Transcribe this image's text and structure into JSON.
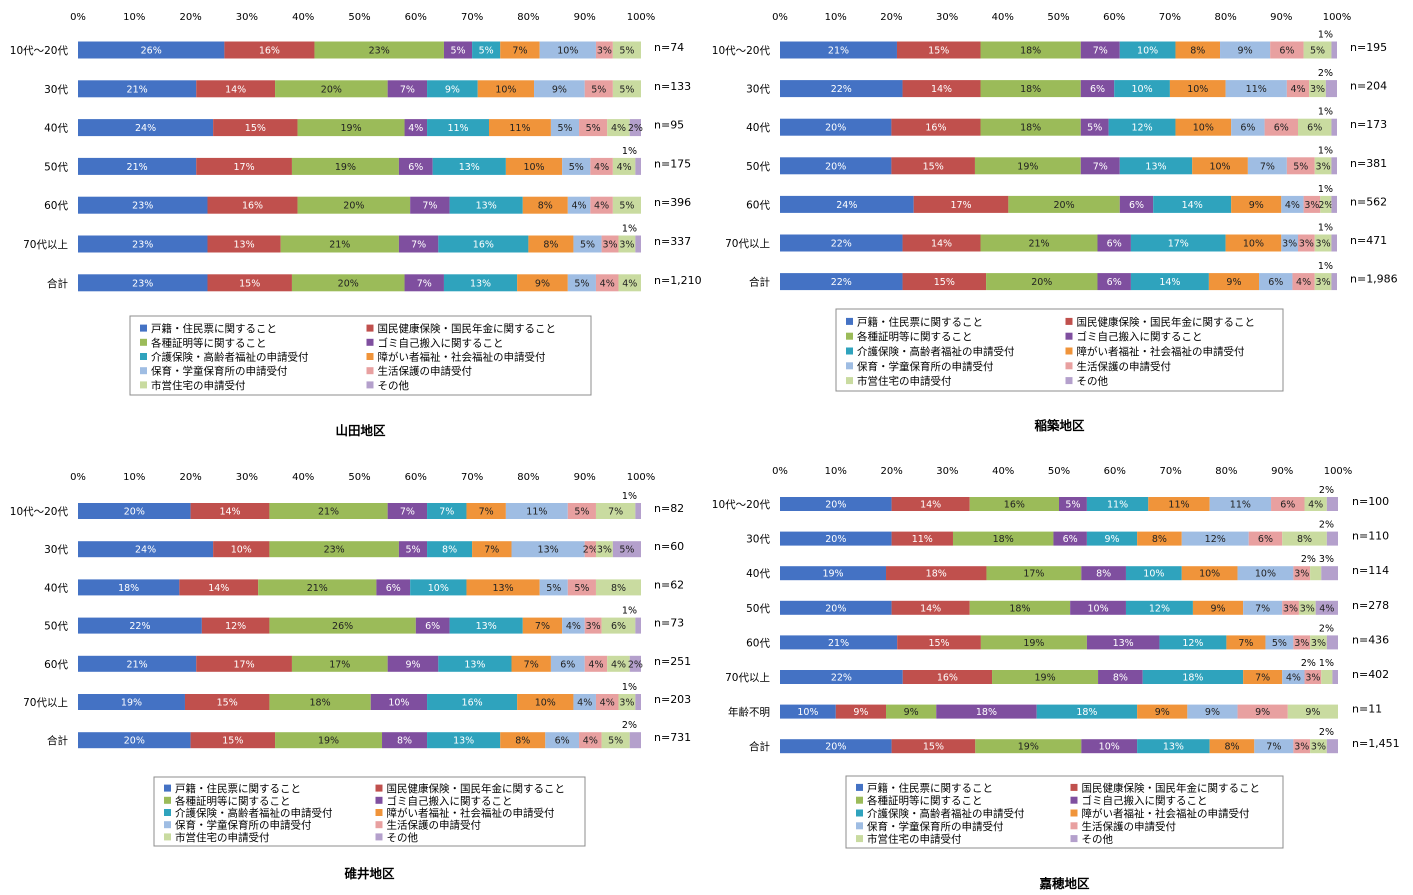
{
  "legend_labels": [
    "戸籍・住民票に関すること",
    "国民健康保険・国民年金に関すること",
    "各種証明等に関すること",
    "ゴミ自己搬入に関すること",
    "介護保険・高齢者福祉の申請受付",
    "障がい者福祉・社会福祉の申請受付",
    "保育・学童保育所の申請受付",
    "生活保護の申請受付",
    "市営住宅の申請受付",
    "その他"
  ],
  "colors": [
    "#4472c4",
    "#c0504d",
    "#9bbb59",
    "#7f4f9f",
    "#2fa3bd",
    "#f0943a",
    "#9fbde3",
    "#e8a0a0",
    "#c9dba0",
    "#b4a0cc"
  ],
  "chart_data": [
    {
      "type": "bar",
      "stacked": true,
      "orientation": "horizontal",
      "percent": true,
      "title": "山田地区",
      "xlim": [
        0,
        100
      ],
      "x_ticks": [
        "0%",
        "10%",
        "20%",
        "30%",
        "40%",
        "50%",
        "60%",
        "70%",
        "80%",
        "90%",
        "100%"
      ],
      "categories": [
        "10代～20代",
        "30代",
        "40代",
        "50代",
        "60代",
        "70代以上",
        "合計"
      ],
      "n_labels": [
        "n=74",
        "n=133",
        "n=95",
        "n=175",
        "n=396",
        "n=337",
        "n=1,210"
      ],
      "rows": [
        {
          "values": [
            26,
            16,
            23,
            5,
            5,
            7,
            10,
            3,
            5,
            0
          ],
          "labels": [
            "26%",
            "16%",
            "23%",
            "5%",
            "5%",
            "7%",
            "10%",
            "3%",
            "5%",
            ""
          ],
          "above": ""
        },
        {
          "values": [
            21,
            14,
            20,
            7,
            9,
            10,
            9,
            5,
            5,
            0
          ],
          "labels": [
            "21%",
            "14%",
            "20%",
            "7%",
            "9%",
            "10%",
            "9%",
            "5%",
            "5%",
            ""
          ],
          "above": ""
        },
        {
          "values": [
            24,
            15,
            19,
            4,
            11,
            11,
            5,
            5,
            4,
            2
          ],
          "labels": [
            "24%",
            "15%",
            "19%",
            "4%",
            "11%",
            "11%",
            "5%",
            "5%",
            "4%",
            "2%"
          ],
          "above": ""
        },
        {
          "values": [
            21,
            17,
            19,
            6,
            13,
            10,
            5,
            4,
            4,
            1
          ],
          "labels": [
            "21%",
            "17%",
            "19%",
            "6%",
            "13%",
            "10%",
            "5%",
            "4%",
            "4%",
            ""
          ],
          "above": "1%"
        },
        {
          "values": [
            23,
            16,
            20,
            7,
            13,
            8,
            4,
            4,
            5,
            0
          ],
          "labels": [
            "23%",
            "16%",
            "20%",
            "7%",
            "13%",
            "8%",
            "4%",
            "4%",
            "5%",
            ""
          ],
          "above": ""
        },
        {
          "values": [
            23,
            13,
            21,
            7,
            16,
            8,
            5,
            3,
            3,
            1
          ],
          "labels": [
            "23%",
            "13%",
            "21%",
            "7%",
            "16%",
            "8%",
            "5%",
            "3%",
            "3%",
            ""
          ],
          "above": "1%"
        },
        {
          "values": [
            23,
            15,
            20,
            7,
            13,
            9,
            5,
            4,
            4,
            0
          ],
          "labels": [
            "23%",
            "15%",
            "20%",
            "7%",
            "13%",
            "9%",
            "5%",
            "4%",
            "4%",
            ""
          ],
          "above": ""
        }
      ]
    },
    {
      "type": "bar",
      "stacked": true,
      "orientation": "horizontal",
      "percent": true,
      "title": "稲築地区",
      "xlim": [
        0,
        100
      ],
      "x_ticks": [
        "0%",
        "10%",
        "20%",
        "30%",
        "40%",
        "50%",
        "60%",
        "70%",
        "80%",
        "90%",
        "100%"
      ],
      "categories": [
        "10代～20代",
        "30代",
        "40代",
        "50代",
        "60代",
        "70代以上",
        "合計"
      ],
      "n_labels": [
        "n=195",
        "n=204",
        "n=173",
        "n=381",
        "n=562",
        "n=471",
        "n=1,986"
      ],
      "rows": [
        {
          "values": [
            21,
            15,
            18,
            7,
            10,
            8,
            9,
            6,
            5,
            1
          ],
          "labels": [
            "21%",
            "15%",
            "18%",
            "7%",
            "10%",
            "8%",
            "9%",
            "6%",
            "5%",
            ""
          ],
          "above": "1%"
        },
        {
          "values": [
            22,
            14,
            18,
            6,
            10,
            10,
            11,
            4,
            3,
            2
          ],
          "labels": [
            "22%",
            "14%",
            "18%",
            "6%",
            "10%",
            "10%",
            "11%",
            "4%",
            "3%",
            ""
          ],
          "above": "2%"
        },
        {
          "values": [
            20,
            16,
            18,
            5,
            12,
            10,
            6,
            6,
            6,
            1
          ],
          "labels": [
            "20%",
            "16%",
            "18%",
            "5%",
            "12%",
            "10%",
            "6%",
            "6%",
            "6%",
            ""
          ],
          "above": "1%"
        },
        {
          "values": [
            20,
            15,
            19,
            7,
            13,
            10,
            7,
            5,
            3,
            1
          ],
          "labels": [
            "20%",
            "15%",
            "19%",
            "7%",
            "13%",
            "10%",
            "7%",
            "5%",
            "3%",
            ""
          ],
          "above": "1%"
        },
        {
          "values": [
            24,
            17,
            20,
            6,
            14,
            9,
            4,
            3,
            2,
            1
          ],
          "labels": [
            "24%",
            "17%",
            "20%",
            "6%",
            "14%",
            "9%",
            "4%",
            "3%",
            "2%",
            ""
          ],
          "above": "1%"
        },
        {
          "values": [
            22,
            14,
            21,
            6,
            17,
            10,
            3,
            3,
            3,
            1
          ],
          "labels": [
            "22%",
            "14%",
            "21%",
            "6%",
            "17%",
            "10%",
            "3%",
            "3%",
            "3%",
            ""
          ],
          "above": "1%"
        },
        {
          "values": [
            22,
            15,
            20,
            6,
            14,
            9,
            6,
            4,
            3,
            1
          ],
          "labels": [
            "22%",
            "15%",
            "20%",
            "6%",
            "14%",
            "9%",
            "6%",
            "4%",
            "3%",
            ""
          ],
          "above": "1%"
        }
      ]
    },
    {
      "type": "bar",
      "stacked": true,
      "orientation": "horizontal",
      "percent": true,
      "title": "碓井地区",
      "xlim": [
        0,
        100
      ],
      "x_ticks": [
        "0%",
        "10%",
        "20%",
        "30%",
        "40%",
        "50%",
        "60%",
        "70%",
        "80%",
        "90%",
        "100%"
      ],
      "categories": [
        "10代～20代",
        "30代",
        "40代",
        "50代",
        "60代",
        "70代以上",
        "合計"
      ],
      "n_labels": [
        "n=82",
        "n=60",
        "n=62",
        "n=73",
        "n=251",
        "n=203",
        "n=731"
      ],
      "rows": [
        {
          "values": [
            20,
            14,
            21,
            7,
            7,
            7,
            11,
            5,
            7,
            1
          ],
          "labels": [
            "20%",
            "14%",
            "21%",
            "7%",
            "7%",
            "7%",
            "11%",
            "5%",
            "7%",
            ""
          ],
          "above": "1%"
        },
        {
          "values": [
            24,
            10,
            23,
            5,
            8,
            7,
            13,
            2,
            3,
            5
          ],
          "labels": [
            "24%",
            "10%",
            "23%",
            "5%",
            "8%",
            "7%",
            "13%",
            "2%",
            "3%",
            "5%"
          ],
          "above": ""
        },
        {
          "values": [
            18,
            14,
            21,
            6,
            10,
            13,
            5,
            5,
            8,
            0
          ],
          "labels": [
            "18%",
            "14%",
            "21%",
            "6%",
            "10%",
            "13%",
            "5%",
            "5%",
            "8%",
            ""
          ],
          "above": ""
        },
        {
          "values": [
            22,
            12,
            26,
            6,
            13,
            7,
            4,
            3,
            6,
            1
          ],
          "labels": [
            "22%",
            "12%",
            "26%",
            "6%",
            "13%",
            "7%",
            "4%",
            "3%",
            "6%",
            ""
          ],
          "above": "1%"
        },
        {
          "values": [
            21,
            17,
            17,
            9,
            13,
            7,
            6,
            4,
            4,
            2
          ],
          "labels": [
            "21%",
            "17%",
            "17%",
            "9%",
            "13%",
            "7%",
            "6%",
            "4%",
            "4%",
            "2%"
          ],
          "above": ""
        },
        {
          "values": [
            19,
            15,
            18,
            10,
            16,
            10,
            4,
            4,
            3,
            1
          ],
          "labels": [
            "19%",
            "15%",
            "18%",
            "10%",
            "16%",
            "10%",
            "4%",
            "4%",
            "3%",
            ""
          ],
          "above": "1%"
        },
        {
          "values": [
            20,
            15,
            19,
            8,
            13,
            8,
            6,
            4,
            5,
            2
          ],
          "labels": [
            "20%",
            "15%",
            "19%",
            "8%",
            "13%",
            "8%",
            "6%",
            "4%",
            "5%",
            ""
          ],
          "above": "2%"
        }
      ]
    },
    {
      "type": "bar",
      "stacked": true,
      "orientation": "horizontal",
      "percent": true,
      "title": "嘉穂地区",
      "xlim": [
        0,
        100
      ],
      "x_ticks": [
        "0%",
        "10%",
        "20%",
        "30%",
        "40%",
        "50%",
        "60%",
        "70%",
        "80%",
        "90%",
        "100%"
      ],
      "categories": [
        "10代～20代",
        "30代",
        "40代",
        "50代",
        "60代",
        "70代以上",
        "年齢不明",
        "合計"
      ],
      "n_labels": [
        "n=100",
        "n=110",
        "n=114",
        "n=278",
        "n=436",
        "n=402",
        "n=11",
        "n=1,451"
      ],
      "rows": [
        {
          "values": [
            20,
            14,
            16,
            5,
            11,
            11,
            11,
            6,
            4,
            2
          ],
          "labels": [
            "20%",
            "14%",
            "16%",
            "5%",
            "11%",
            "11%",
            "11%",
            "6%",
            "4%",
            ""
          ],
          "above": "2%"
        },
        {
          "values": [
            20,
            11,
            18,
            6,
            9,
            8,
            12,
            6,
            8,
            2
          ],
          "labels": [
            "20%",
            "11%",
            "18%",
            "6%",
            "9%",
            "8%",
            "12%",
            "6%",
            "8%",
            ""
          ],
          "above": "2%"
        },
        {
          "values": [
            19,
            18,
            17,
            8,
            10,
            10,
            10,
            3,
            2,
            3
          ],
          "labels": [
            "19%",
            "18%",
            "17%",
            "8%",
            "10%",
            "10%",
            "10%",
            "3%",
            "",
            ""
          ],
          "above": "2%  3%"
        },
        {
          "values": [
            20,
            14,
            18,
            10,
            12,
            9,
            7,
            3,
            3,
            4
          ],
          "labels": [
            "20%",
            "14%",
            "18%",
            "10%",
            "12%",
            "9%",
            "7%",
            "3%",
            "3%",
            "4%"
          ],
          "above": ""
        },
        {
          "values": [
            21,
            15,
            19,
            13,
            12,
            7,
            5,
            3,
            3,
            2
          ],
          "labels": [
            "21%",
            "15%",
            "19%",
            "13%",
            "12%",
            "7%",
            "5%",
            "3%",
            "3%",
            ""
          ],
          "above": "2%"
        },
        {
          "values": [
            22,
            16,
            19,
            8,
            18,
            7,
            4,
            3,
            2,
            1
          ],
          "labels": [
            "22%",
            "16%",
            "19%",
            "8%",
            "18%",
            "7%",
            "4%",
            "3%",
            "",
            ""
          ],
          "above": "2%  1%"
        },
        {
          "values": [
            10,
            9,
            9,
            18,
            18,
            9,
            9,
            9,
            9,
            0
          ],
          "labels": [
            "10%",
            "9%",
            "9%",
            "18%",
            "18%",
            "9%",
            "9%",
            "9%",
            "9%",
            ""
          ],
          "above": ""
        },
        {
          "values": [
            20,
            15,
            19,
            10,
            13,
            8,
            7,
            3,
            3,
            2
          ],
          "labels": [
            "20%",
            "15%",
            "19%",
            "10%",
            "13%",
            "8%",
            "7%",
            "3%",
            "3%",
            ""
          ],
          "above": "2%"
        }
      ]
    }
  ]
}
